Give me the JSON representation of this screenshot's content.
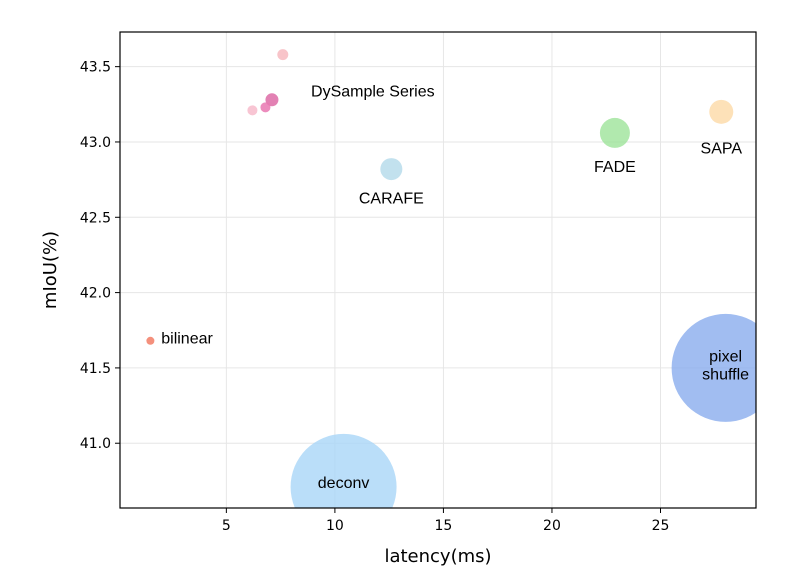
{
  "chart_data": {
    "type": "scatter",
    "xlabel": "latency(ms)",
    "ylabel": "mIoU(%)",
    "xlim": [
      0.1,
      29.4
    ],
    "ylim": [
      40.57,
      43.73
    ],
    "xticks": [
      5,
      10,
      15,
      20,
      25
    ],
    "yticks": [
      41.0,
      41.5,
      42.0,
      42.5,
      43.0,
      43.5
    ],
    "xtick_labels": [
      "5",
      "10",
      "15",
      "20",
      "25"
    ],
    "ytick_labels": [
      "41.0",
      "41.5",
      "42.0",
      "42.5",
      "43.0",
      "43.5"
    ],
    "grid": true,
    "points": [
      {
        "label": "bilinear",
        "x": 1.5,
        "y": 41.68,
        "r": 4,
        "color": "#f4907c",
        "opacity": 1.0
      },
      {
        "label": "",
        "x": 6.2,
        "y": 43.21,
        "r": 5,
        "color": "#f6b7c8",
        "opacity": 0.8
      },
      {
        "label": "",
        "x": 6.8,
        "y": 43.23,
        "r": 5,
        "color": "#e978b1",
        "opacity": 0.85
      },
      {
        "label": "",
        "x": 7.1,
        "y": 43.28,
        "r": 6.5,
        "color": "#dd6ba6",
        "opacity": 0.85
      },
      {
        "label": "",
        "x": 7.6,
        "y": 43.58,
        "r": 5.5,
        "color": "#f6b5bc",
        "opacity": 0.8
      },
      {
        "label": "CARAFE",
        "x": 12.6,
        "y": 42.82,
        "r": 11,
        "color": "#b3d9ea",
        "opacity": 0.8
      },
      {
        "label": "FADE",
        "x": 22.9,
        "y": 43.06,
        "r": 15,
        "color": "#97e293",
        "opacity": 0.75
      },
      {
        "label": "SAPA",
        "x": 27.8,
        "y": 43.2,
        "r": 12,
        "color": "#fcd9a6",
        "opacity": 0.8
      },
      {
        "label": "deconv",
        "x": 10.4,
        "y": 40.71,
        "r": 53,
        "color": "#a9d6f8",
        "opacity": 0.8
      },
      {
        "label": "pixel shuffle",
        "x": 28.0,
        "y": 41.5,
        "r": 54,
        "color": "#8aadee",
        "opacity": 0.8
      }
    ],
    "annotations": [
      {
        "text": "DySample Series",
        "x": 8.9,
        "y": 43.33,
        "anchor": "start"
      },
      {
        "text": "bilinear",
        "x": 2.0,
        "y": 41.69,
        "anchor": "start"
      },
      {
        "text": "CARAFE",
        "x": 12.6,
        "y": 42.62,
        "anchor": "middle"
      },
      {
        "text": "FADE",
        "x": 22.9,
        "y": 42.83,
        "anchor": "middle"
      },
      {
        "text": "SAPA",
        "x": 27.8,
        "y": 42.95,
        "anchor": "middle"
      },
      {
        "text": "deconv",
        "x": 10.4,
        "y": 40.73,
        "anchor": "middle"
      },
      {
        "text": "pixel",
        "x": 28.0,
        "y": 41.57,
        "anchor": "middle"
      },
      {
        "text": "shuffle",
        "x": 28.0,
        "y": 41.45,
        "anchor": "middle"
      }
    ]
  }
}
